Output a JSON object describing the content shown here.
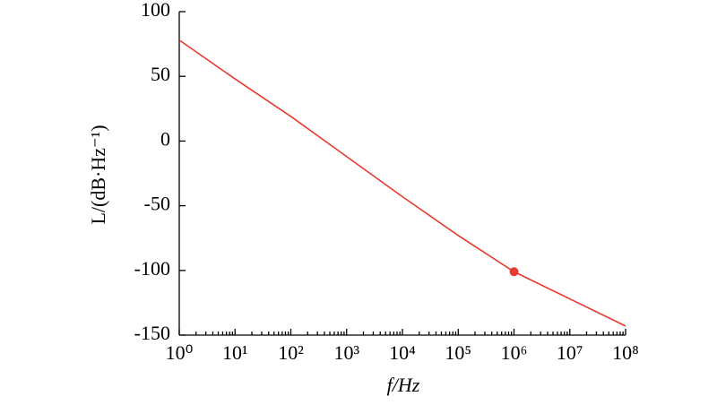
{
  "chart_data": {
    "type": "line",
    "x_label": "f/Hz",
    "y_label": "L/(dB·Hz⁻¹)",
    "x": [
      1,
      10,
      100,
      1000,
      10000,
      100000,
      1000000,
      10000000,
      100000000
    ],
    "series": [
      {
        "color": "#e8392f",
        "values": [
          78,
          48,
          19,
          -12,
          -43,
          -73,
          -101,
          -122,
          -143
        ]
      }
    ],
    "point": {
      "x": 1000000,
      "y": -101,
      "color": "#e8392f"
    },
    "log_x": true,
    "xlim": [
      1,
      100000000
    ],
    "xticks": [
      {
        "value": 1,
        "label": "10⁰"
      },
      {
        "value": 10,
        "label": "10¹"
      },
      {
        "value": 100,
        "label": "10²"
      },
      {
        "value": 1000,
        "label": "10³"
      },
      {
        "value": 10000,
        "label": "10⁴"
      },
      {
        "value": 100000,
        "label": "10⁵"
      },
      {
        "value": 1000000,
        "label": "10⁶"
      },
      {
        "value": 10000000,
        "label": "10⁷"
      },
      {
        "value": 100000000,
        "label": "10⁸"
      }
    ],
    "ylim": [
      -150,
      100
    ],
    "yticks": [
      -150,
      -100,
      -50,
      0,
      50,
      100
    ]
  }
}
